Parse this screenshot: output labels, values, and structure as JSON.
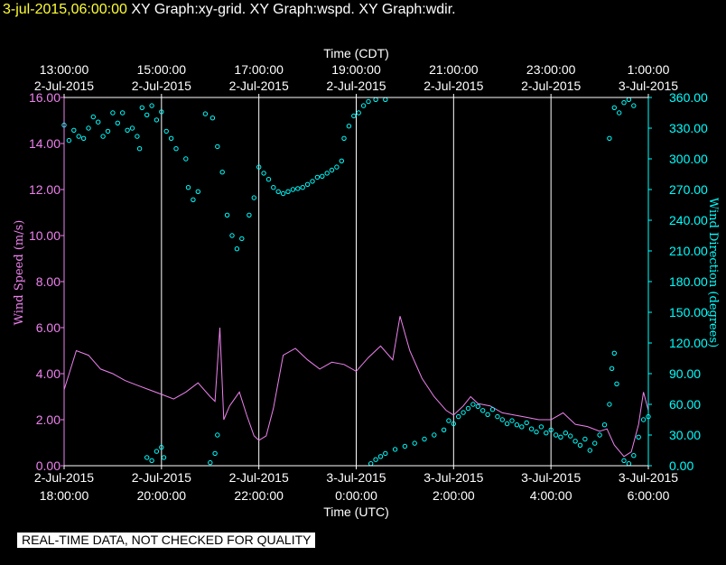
{
  "header": {
    "timestamp": "3-jul-2015,06:00:00",
    "titles": "XY Graph:xy-grid.  XY Graph:wspd.  XY Graph:wdir."
  },
  "footer": {
    "note": "REAL-TIME DATA, NOT CHECKED FOR QUALITY"
  },
  "colors": {
    "background": "#000000",
    "wind_speed": "#ee82ee",
    "wind_direction": "#00ffff",
    "grid": "#ffffff",
    "timestamp": "#ffff33"
  },
  "chart_data": {
    "type": "line",
    "grid": true,
    "x_top": {
      "label": "Time (CDT)",
      "ticks": [
        {
          "hours": 0,
          "time": "13:00:00",
          "date": "2-Jul-2015"
        },
        {
          "hours": 2,
          "time": "15:00:00",
          "date": "2-Jul-2015"
        },
        {
          "hours": 4,
          "time": "17:00:00",
          "date": "2-Jul-2015"
        },
        {
          "hours": 6,
          "time": "19:00:00",
          "date": "2-Jul-2015"
        },
        {
          "hours": 8,
          "time": "21:00:00",
          "date": "2-Jul-2015"
        },
        {
          "hours": 10,
          "time": "23:00:00",
          "date": "2-Jul-2015"
        },
        {
          "hours": 12,
          "time": "1:00:00",
          "date": "3-Jul-2015"
        }
      ]
    },
    "x_bottom": {
      "label": "Time (UTC)",
      "range": [
        "2015-07-02 18:00:00",
        "2015-07-03 06:00:00"
      ],
      "ticks": [
        {
          "hours": 0,
          "date": "2-Jul-2015",
          "time": "18:00:00"
        },
        {
          "hours": 2,
          "date": "2-Jul-2015",
          "time": "20:00:00"
        },
        {
          "hours": 4,
          "date": "2-Jul-2015",
          "time": "22:00:00"
        },
        {
          "hours": 6,
          "date": "3-Jul-2015",
          "time": "0:00:00"
        },
        {
          "hours": 8,
          "date": "3-Jul-2015",
          "time": "2:00:00"
        },
        {
          "hours": 10,
          "date": "3-Jul-2015",
          "time": "4:00:00"
        },
        {
          "hours": 12,
          "date": "3-Jul-2015",
          "time": "6:00:00"
        }
      ]
    },
    "y_left": {
      "label": "Wind Speed (m/s)",
      "ylim": [
        0,
        16
      ],
      "ticks": [
        "0.00",
        "2.00",
        "4.00",
        "6.00",
        "8.00",
        "10.00",
        "12.00",
        "14.00",
        "16.00"
      ]
    },
    "y_right": {
      "label": "Wind Direction (degrees)",
      "ylim": [
        0,
        360
      ],
      "ticks": [
        "0.00",
        "30.00",
        "60.00",
        "90.00",
        "120.00",
        "150.00",
        "180.00",
        "210.00",
        "240.00",
        "270.00",
        "300.00",
        "330.00",
        "360.00"
      ]
    },
    "series": [
      {
        "name": "Wind Speed",
        "kind": "line",
        "points": [
          [
            0.0,
            3.3
          ],
          [
            0.25,
            5.0
          ],
          [
            0.5,
            4.8
          ],
          [
            0.75,
            4.2
          ],
          [
            1.0,
            4.0
          ],
          [
            1.25,
            3.7
          ],
          [
            1.5,
            3.5
          ],
          [
            1.75,
            3.3
          ],
          [
            2.0,
            3.1
          ],
          [
            2.25,
            2.9
          ],
          [
            2.5,
            3.2
          ],
          [
            2.75,
            3.6
          ],
          [
            3.0,
            3.0
          ],
          [
            3.1,
            2.8
          ],
          [
            3.2,
            6.0
          ],
          [
            3.28,
            2.0
          ],
          [
            3.4,
            2.6
          ],
          [
            3.6,
            3.2
          ],
          [
            3.75,
            2.2
          ],
          [
            3.9,
            1.3
          ],
          [
            4.0,
            1.1
          ],
          [
            4.15,
            1.3
          ],
          [
            4.3,
            2.5
          ],
          [
            4.5,
            4.8
          ],
          [
            4.75,
            5.1
          ],
          [
            5.0,
            4.6
          ],
          [
            5.25,
            4.2
          ],
          [
            5.5,
            4.5
          ],
          [
            5.75,
            4.4
          ],
          [
            6.0,
            4.1
          ],
          [
            6.25,
            4.7
          ],
          [
            6.5,
            5.2
          ],
          [
            6.75,
            4.6
          ],
          [
            6.9,
            6.5
          ],
          [
            7.1,
            5.0
          ],
          [
            7.35,
            3.8
          ],
          [
            7.6,
            3.0
          ],
          [
            7.85,
            2.4
          ],
          [
            8.0,
            2.2
          ],
          [
            8.2,
            2.6
          ],
          [
            8.35,
            3.0
          ],
          [
            8.5,
            2.7
          ],
          [
            8.75,
            2.6
          ],
          [
            9.0,
            2.3
          ],
          [
            9.25,
            2.2
          ],
          [
            9.5,
            2.1
          ],
          [
            9.75,
            2.0
          ],
          [
            10.0,
            2.0
          ],
          [
            10.25,
            2.3
          ],
          [
            10.5,
            1.8
          ],
          [
            10.75,
            1.7
          ],
          [
            11.0,
            1.5
          ],
          [
            11.15,
            1.6
          ],
          [
            11.3,
            0.9
          ],
          [
            11.5,
            0.4
          ],
          [
            11.65,
            0.6
          ],
          [
            11.8,
            1.8
          ],
          [
            11.9,
            3.2
          ],
          [
            12.0,
            2.4
          ]
        ]
      },
      {
        "name": "Wind Direction",
        "kind": "scatter",
        "points": [
          [
            0.0,
            333
          ],
          [
            0.1,
            318
          ],
          [
            0.2,
            328
          ],
          [
            0.3,
            322
          ],
          [
            0.4,
            320
          ],
          [
            0.5,
            330
          ],
          [
            0.6,
            341
          ],
          [
            0.7,
            336
          ],
          [
            0.8,
            322
          ],
          [
            0.9,
            327
          ],
          [
            1.0,
            345
          ],
          [
            1.1,
            335
          ],
          [
            1.2,
            345
          ],
          [
            1.3,
            328
          ],
          [
            1.4,
            330
          ],
          [
            1.5,
            322
          ],
          [
            1.55,
            310
          ],
          [
            1.6,
            350
          ],
          [
            1.7,
            343
          ],
          [
            1.8,
            352
          ],
          [
            1.9,
            338
          ],
          [
            2.0,
            346
          ],
          [
            2.1,
            327
          ],
          [
            2.2,
            320
          ],
          [
            2.3,
            310
          ],
          [
            2.5,
            300
          ],
          [
            2.55,
            272
          ],
          [
            2.65,
            260
          ],
          [
            2.75,
            268
          ],
          [
            2.9,
            344
          ],
          [
            3.05,
            340
          ],
          [
            3.15,
            312
          ],
          [
            3.25,
            287
          ],
          [
            3.35,
            245
          ],
          [
            3.45,
            225
          ],
          [
            3.55,
            212
          ],
          [
            3.65,
            222
          ],
          [
            3.8,
            245
          ],
          [
            3.9,
            262
          ],
          [
            4.0,
            292
          ],
          [
            4.1,
            286
          ],
          [
            4.2,
            280
          ],
          [
            4.3,
            272
          ],
          [
            4.4,
            268
          ],
          [
            4.5,
            266
          ],
          [
            4.6,
            268
          ],
          [
            4.7,
            270
          ],
          [
            4.8,
            271
          ],
          [
            4.9,
            272
          ],
          [
            5.0,
            275
          ],
          [
            5.1,
            278
          ],
          [
            5.2,
            282
          ],
          [
            5.3,
            283
          ],
          [
            5.4,
            286
          ],
          [
            5.5,
            289
          ],
          [
            5.6,
            292
          ],
          [
            5.7,
            298
          ],
          [
            5.75,
            320
          ],
          [
            5.85,
            332
          ],
          [
            5.95,
            342
          ],
          [
            6.05,
            345
          ],
          [
            6.15,
            352
          ],
          [
            6.25,
            356
          ],
          [
            6.4,
            358
          ],
          [
            6.6,
            358
          ],
          [
            1.7,
            8
          ],
          [
            1.8,
            5
          ],
          [
            1.9,
            14
          ],
          [
            2.0,
            18
          ],
          [
            2.05,
            8
          ],
          [
            3.0,
            3
          ],
          [
            3.1,
            12
          ],
          [
            3.15,
            30
          ],
          [
            6.3,
            2
          ],
          [
            6.4,
            6
          ],
          [
            6.5,
            9
          ],
          [
            6.6,
            12
          ],
          [
            6.8,
            16
          ],
          [
            7.0,
            19
          ],
          [
            7.2,
            22
          ],
          [
            7.4,
            26
          ],
          [
            7.6,
            30
          ],
          [
            7.8,
            35
          ],
          [
            7.9,
            44
          ],
          [
            8.0,
            41
          ],
          [
            8.1,
            48
          ],
          [
            8.2,
            52
          ],
          [
            8.3,
            56
          ],
          [
            8.4,
            60
          ],
          [
            8.5,
            58
          ],
          [
            8.6,
            54
          ],
          [
            8.7,
            50
          ],
          [
            8.8,
            55
          ],
          [
            8.9,
            48
          ],
          [
            9.0,
            45
          ],
          [
            9.1,
            41
          ],
          [
            9.2,
            44
          ],
          [
            9.3,
            40
          ],
          [
            9.4,
            38
          ],
          [
            9.5,
            42
          ],
          [
            9.6,
            36
          ],
          [
            9.7,
            33
          ],
          [
            9.8,
            38
          ],
          [
            9.9,
            32
          ],
          [
            10.0,
            35
          ],
          [
            10.1,
            30
          ],
          [
            10.2,
            28
          ],
          [
            10.3,
            32
          ],
          [
            10.4,
            29
          ],
          [
            10.5,
            24
          ],
          [
            10.6,
            20
          ],
          [
            10.7,
            26
          ],
          [
            10.8,
            15
          ],
          [
            10.9,
            22
          ],
          [
            11.0,
            30
          ],
          [
            11.1,
            40
          ],
          [
            11.2,
            60
          ],
          [
            11.25,
            95
          ],
          [
            11.3,
            110
          ],
          [
            11.35,
            80
          ],
          [
            11.5,
            5
          ],
          [
            11.6,
            2
          ],
          [
            11.7,
            10
          ],
          [
            11.8,
            28
          ],
          [
            11.9,
            45
          ],
          [
            12.0,
            48
          ],
          [
            11.3,
            350
          ],
          [
            11.4,
            345
          ],
          [
            11.5,
            355
          ],
          [
            11.6,
            358
          ],
          [
            11.7,
            352
          ],
          [
            11.2,
            320
          ]
        ]
      }
    ]
  }
}
